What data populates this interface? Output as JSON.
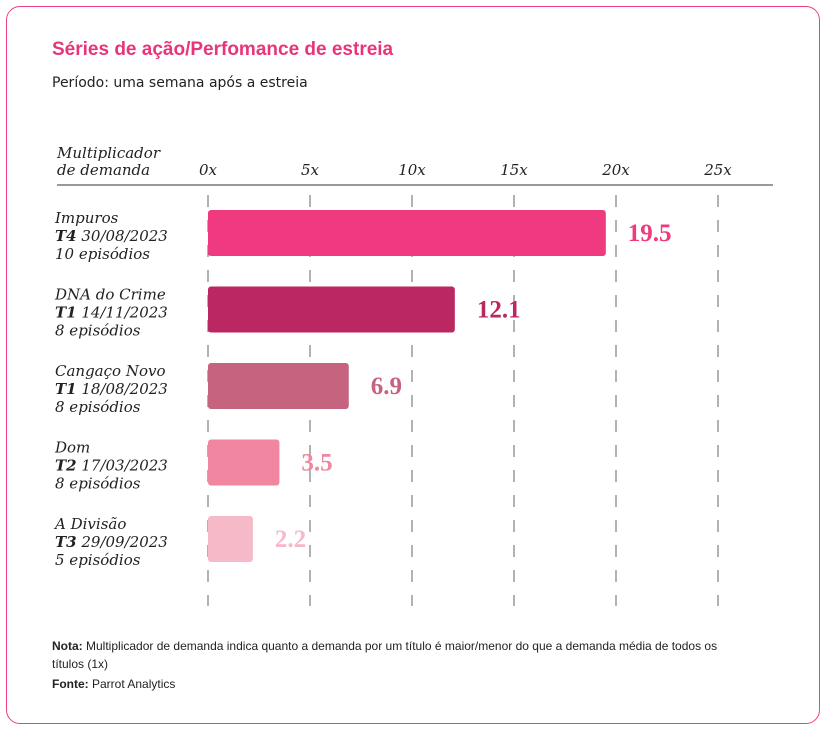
{
  "header": {
    "title": "Séries de ação/Perfomance de estreia",
    "subtitle": "Período: uma semana após a estreia"
  },
  "footer": {
    "note_label": "Nota:",
    "note_text": "Multiplicador de demanda indica quanto a demanda por um título é maior/menor do que a demanda média de todos os títulos (1x)",
    "source_label": "Fonte:",
    "source_text": "Parrot Analytics"
  },
  "chart_data": {
    "type": "bar",
    "orientation": "horizontal",
    "title": "Séries de ação/Perfomance de estreia",
    "subtitle": "Período: uma semana após a estreia",
    "category_header": [
      "Multiplicador",
      "de demanda"
    ],
    "x_ticks": [
      "0x",
      "5x",
      "10x",
      "15x",
      "20x",
      "25x"
    ],
    "xlim": [
      0,
      25
    ],
    "grid": true,
    "bars": [
      {
        "title": "Impuros",
        "season": "T4",
        "date": "30/08/2023",
        "episodes": "10 episódios",
        "value": 19.5,
        "label": "19.5",
        "color": "#ef3a7f"
      },
      {
        "title": "DNA do Crime",
        "season": "T1",
        "date": "14/11/2023",
        "episodes": "8 episódios",
        "value": 12.1,
        "label": "12.1",
        "color": "#bb2760"
      },
      {
        "title": "Cangaço Novo",
        "season": "T1",
        "date": "18/08/2023",
        "episodes": "8 episódios",
        "value": 6.9,
        "label": "6.9",
        "color": "#c6637f"
      },
      {
        "title": "Dom",
        "season": "T2",
        "date": "17/03/2023",
        "episodes": "8 episódios",
        "value": 3.5,
        "label": "3.5",
        "color": "#f0869f"
      },
      {
        "title": "A Divisão",
        "season": "T3",
        "date": "29/09/2023",
        "episodes": "5 episódios",
        "value": 2.2,
        "label": "2.2",
        "color": "#f5b9c8"
      }
    ]
  }
}
